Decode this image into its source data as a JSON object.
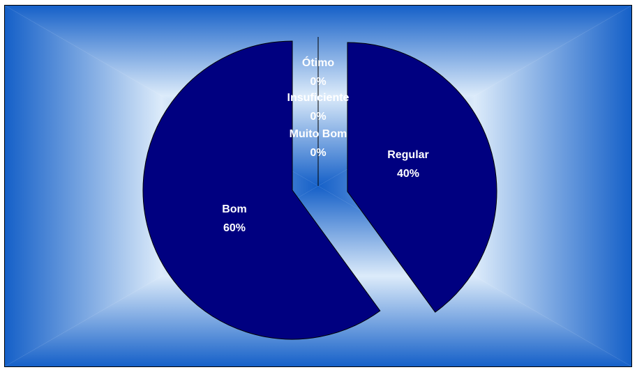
{
  "chart_data": {
    "type": "pie",
    "categories": [
      "Ótimo",
      "Insuficiente",
      "Muito Bom",
      "Regular",
      "Bom"
    ],
    "values": [
      0,
      0,
      0,
      40,
      60
    ],
    "labels": [
      {
        "name": "Ótimo",
        "percent": "0%"
      },
      {
        "name": "Insuficiente",
        "percent": "0%"
      },
      {
        "name": "Muito Bom",
        "percent": "0%"
      },
      {
        "name": "Regular",
        "percent": "40%"
      },
      {
        "name": "Bom",
        "percent": "60%"
      }
    ],
    "exploded": true,
    "legend": "none",
    "colors": {
      "slice_fill": "#000080",
      "slice_stroke": "#000000",
      "label_text": "#ffffff",
      "background_edge": "#1560C8",
      "background_center": "#DCEBFA"
    }
  }
}
